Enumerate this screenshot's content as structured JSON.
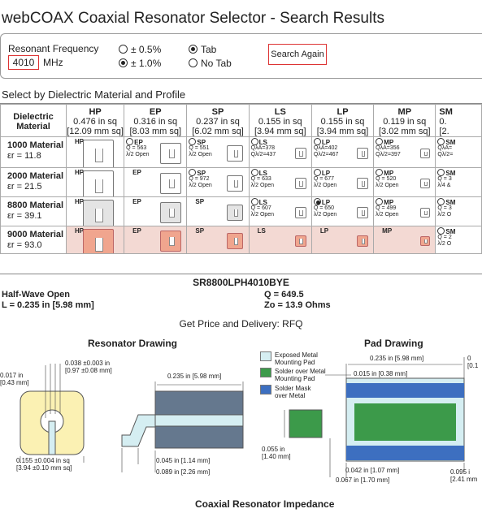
{
  "title": "webCOAX Coaxial Resonator Selector - Search Results",
  "search": {
    "freq_label": "Resonant Frequency",
    "freq_value": "4010",
    "freq_unit": "MHz",
    "tol_05": "± 0.5%",
    "tol_10": "± 1.0%",
    "tab": "Tab",
    "no_tab": "No Tab",
    "search_again": "Search Again"
  },
  "select_heading": "Select by Dielectric Material and Profile",
  "profiles": [
    {
      "name": "HP",
      "size_in": "0.476 in sq",
      "size_mm": "[12.09 mm sq]"
    },
    {
      "name": "EP",
      "size_in": "0.316 in sq",
      "size_mm": "[8.03 mm sq]"
    },
    {
      "name": "SP",
      "size_in": "0.237 in sq",
      "size_mm": "[6.02 mm sq]"
    },
    {
      "name": "LS",
      "size_in": "0.155 in sq",
      "size_mm": "[3.94 mm sq]"
    },
    {
      "name": "LP",
      "size_in": "0.155 in sq",
      "size_mm": "[3.94 mm sq]"
    },
    {
      "name": "MP",
      "size_in": "0.119 in sq",
      "size_mm": "[3.02 mm sq]"
    },
    {
      "name": "SM",
      "size_in": "0.",
      "size_mm": "[2."
    }
  ],
  "dielectric_header": "Dielectric Material",
  "materials": [
    {
      "name": "1000 Material",
      "er": "εr = 11.8"
    },
    {
      "name": "2000 Material",
      "er": "εr = 21.5"
    },
    {
      "name": "8800 Material",
      "er": "εr = 39.1"
    },
    {
      "name": "9000 Material",
      "er": "εr = 93.0"
    }
  ],
  "cells": [
    [
      {
        "name": "HP"
      },
      {
        "name": "EP",
        "q1": "Q = 563",
        "q2": "λ/2 Open",
        "radio": true
      },
      {
        "name": "SP",
        "q1": "Q = 551",
        "q2": "λ/2 Open",
        "radio": true
      },
      {
        "name": "LS",
        "q1": "QλA=378",
        "q2": "Qλ/2=437",
        "radio": true
      },
      {
        "name": "LP",
        "q1": "QλA=402",
        "q2": "Qλ/2=467",
        "radio": true
      },
      {
        "name": "MP",
        "q1": "QλA=356",
        "q2": "Qλ/2=397",
        "radio": true
      },
      {
        "name": "SM",
        "q1": "QλA=",
        "q2": "Qλ/2=",
        "radio": true
      }
    ],
    [
      {
        "name": "HP"
      },
      {
        "name": "EP"
      },
      {
        "name": "SP",
        "q1": "Q = 972",
        "q2": "λ/2 Open",
        "radio": true
      },
      {
        "name": "LS",
        "q1": "Q = 633",
        "q2": "λ/2 Open",
        "radio": true
      },
      {
        "name": "LP",
        "q1": "Q = 677",
        "q2": "λ/2 Open",
        "radio": true
      },
      {
        "name": "MP",
        "q1": "Q = 520",
        "q2": "λ/2 Open",
        "radio": true
      },
      {
        "name": "SM",
        "q1": "Q = 3",
        "q2": "λ/4 &",
        "radio": true
      }
    ],
    [
      {
        "name": "HP"
      },
      {
        "name": "EP"
      },
      {
        "name": "SP"
      },
      {
        "name": "LS",
        "q1": "Q = 607",
        "q2": "λ/2 Open",
        "radio": true
      },
      {
        "name": "LP",
        "q1": "Q = 650",
        "q2": "λ/2 Open",
        "radio": true,
        "selected": true
      },
      {
        "name": "MP",
        "q1": "Q = 499",
        "q2": "λ/2 Open",
        "radio": true
      },
      {
        "name": "SM",
        "q1": "Q = 3",
        "q2": "λ/2 O",
        "radio": true
      }
    ],
    [
      {
        "name": "HP"
      },
      {
        "name": "EP"
      },
      {
        "name": "SP"
      },
      {
        "name": "LS"
      },
      {
        "name": "LP"
      },
      {
        "name": "MP"
      },
      {
        "name": "SM",
        "q1": "Q = 2",
        "q2": "λ/2 O",
        "radio": true
      }
    ]
  ],
  "result": {
    "part": "SR8800LPH4010BYE",
    "mode": "Half-Wave Open",
    "length": "L = 0.235 in [5.98 mm]",
    "q": "Q = 649.5",
    "zo": "Zo = 13.9 Ohms",
    "price": "Get Price and Delivery: RFQ"
  },
  "drawing": {
    "title": "Resonator Drawing",
    "d1a": "0.017 in",
    "d1b": "[0.43 mm]",
    "d2a": "0.038 ±0.003 in",
    "d2b": "[0.97 ±0.08 mm]",
    "d3a": "0.155 ±0.004 in sq",
    "d3b": "[3.94 ±0.10 mm sq]",
    "d4": "0.235 in [5.98 mm]",
    "d5": "0.045 in [1.14 mm]",
    "d6": "0.089 in [2.26 mm]"
  },
  "pad": {
    "title": "Pad Drawing",
    "leg1a": "Exposed Metal",
    "leg1b": "Mounting Pad",
    "leg2a": "Solder over Metal",
    "leg2b": "Mounting Pad",
    "leg3a": "Solder Mask",
    "leg3b": "over Metal",
    "d1": "0.235 in [5.98 mm]",
    "d2": "0.015 in [0.38 mm]",
    "d3a": "0.055 in",
    "d3b": "[1.40 mm]",
    "d4": "0.042 in [1.07 mm]",
    "d5": "0.067 in [1.70 mm]",
    "d6a": "0.095 i",
    "d6b": "[2.41 mm",
    "d7a": "0",
    "d7b": "[0.1"
  },
  "impedance_title": "Coaxial Resonator Impedance",
  "colors": {
    "exposed": "#d5eef2",
    "solder": "#3c9a4a",
    "mask": "#3d6fc0",
    "selected": "#f3d9d3",
    "highlight_tile": "#f0a58e"
  }
}
